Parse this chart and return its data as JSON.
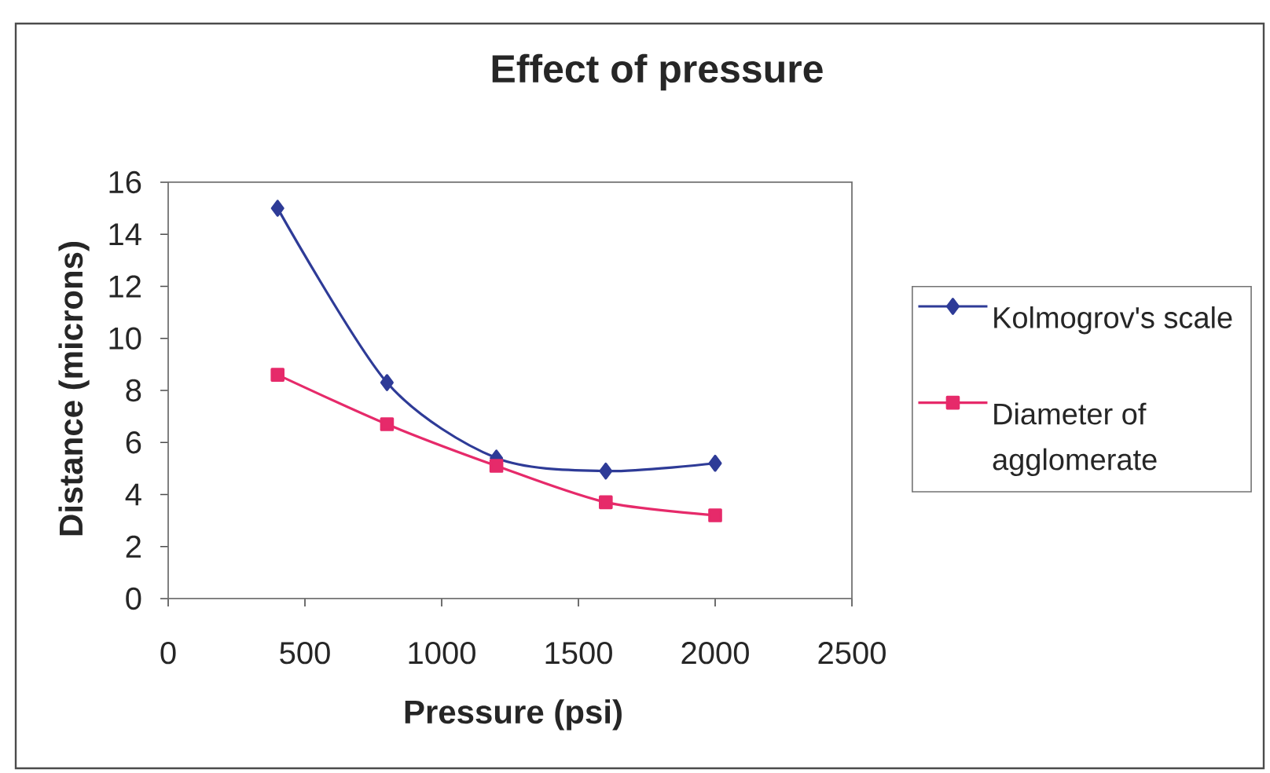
{
  "chart_data": {
    "type": "line",
    "title": "Effect of pressure",
    "xlabel": "Pressure (psi)",
    "ylabel": "Distance (microns)",
    "x": [
      400,
      800,
      1200,
      1600,
      2000
    ],
    "series": [
      {
        "name": "Kolmogrov's scale",
        "color": "#2e3b97",
        "marker": "diamond",
        "values": [
          15,
          8.3,
          5.4,
          4.9,
          5.2
        ]
      },
      {
        "name": "Diameter of agglomerate",
        "color": "#e62a6a",
        "marker": "square",
        "values": [
          8.6,
          6.7,
          5.1,
          3.7,
          3.2
        ]
      }
    ],
    "xlim": [
      0,
      2500
    ],
    "xticks": [
      0,
      500,
      1000,
      1500,
      2000,
      2500
    ],
    "ylim": [
      0,
      16
    ],
    "yticks": [
      0,
      2,
      4,
      6,
      8,
      10,
      12,
      14,
      16
    ],
    "grid": false,
    "legend": "right",
    "line_style": "solid"
  }
}
